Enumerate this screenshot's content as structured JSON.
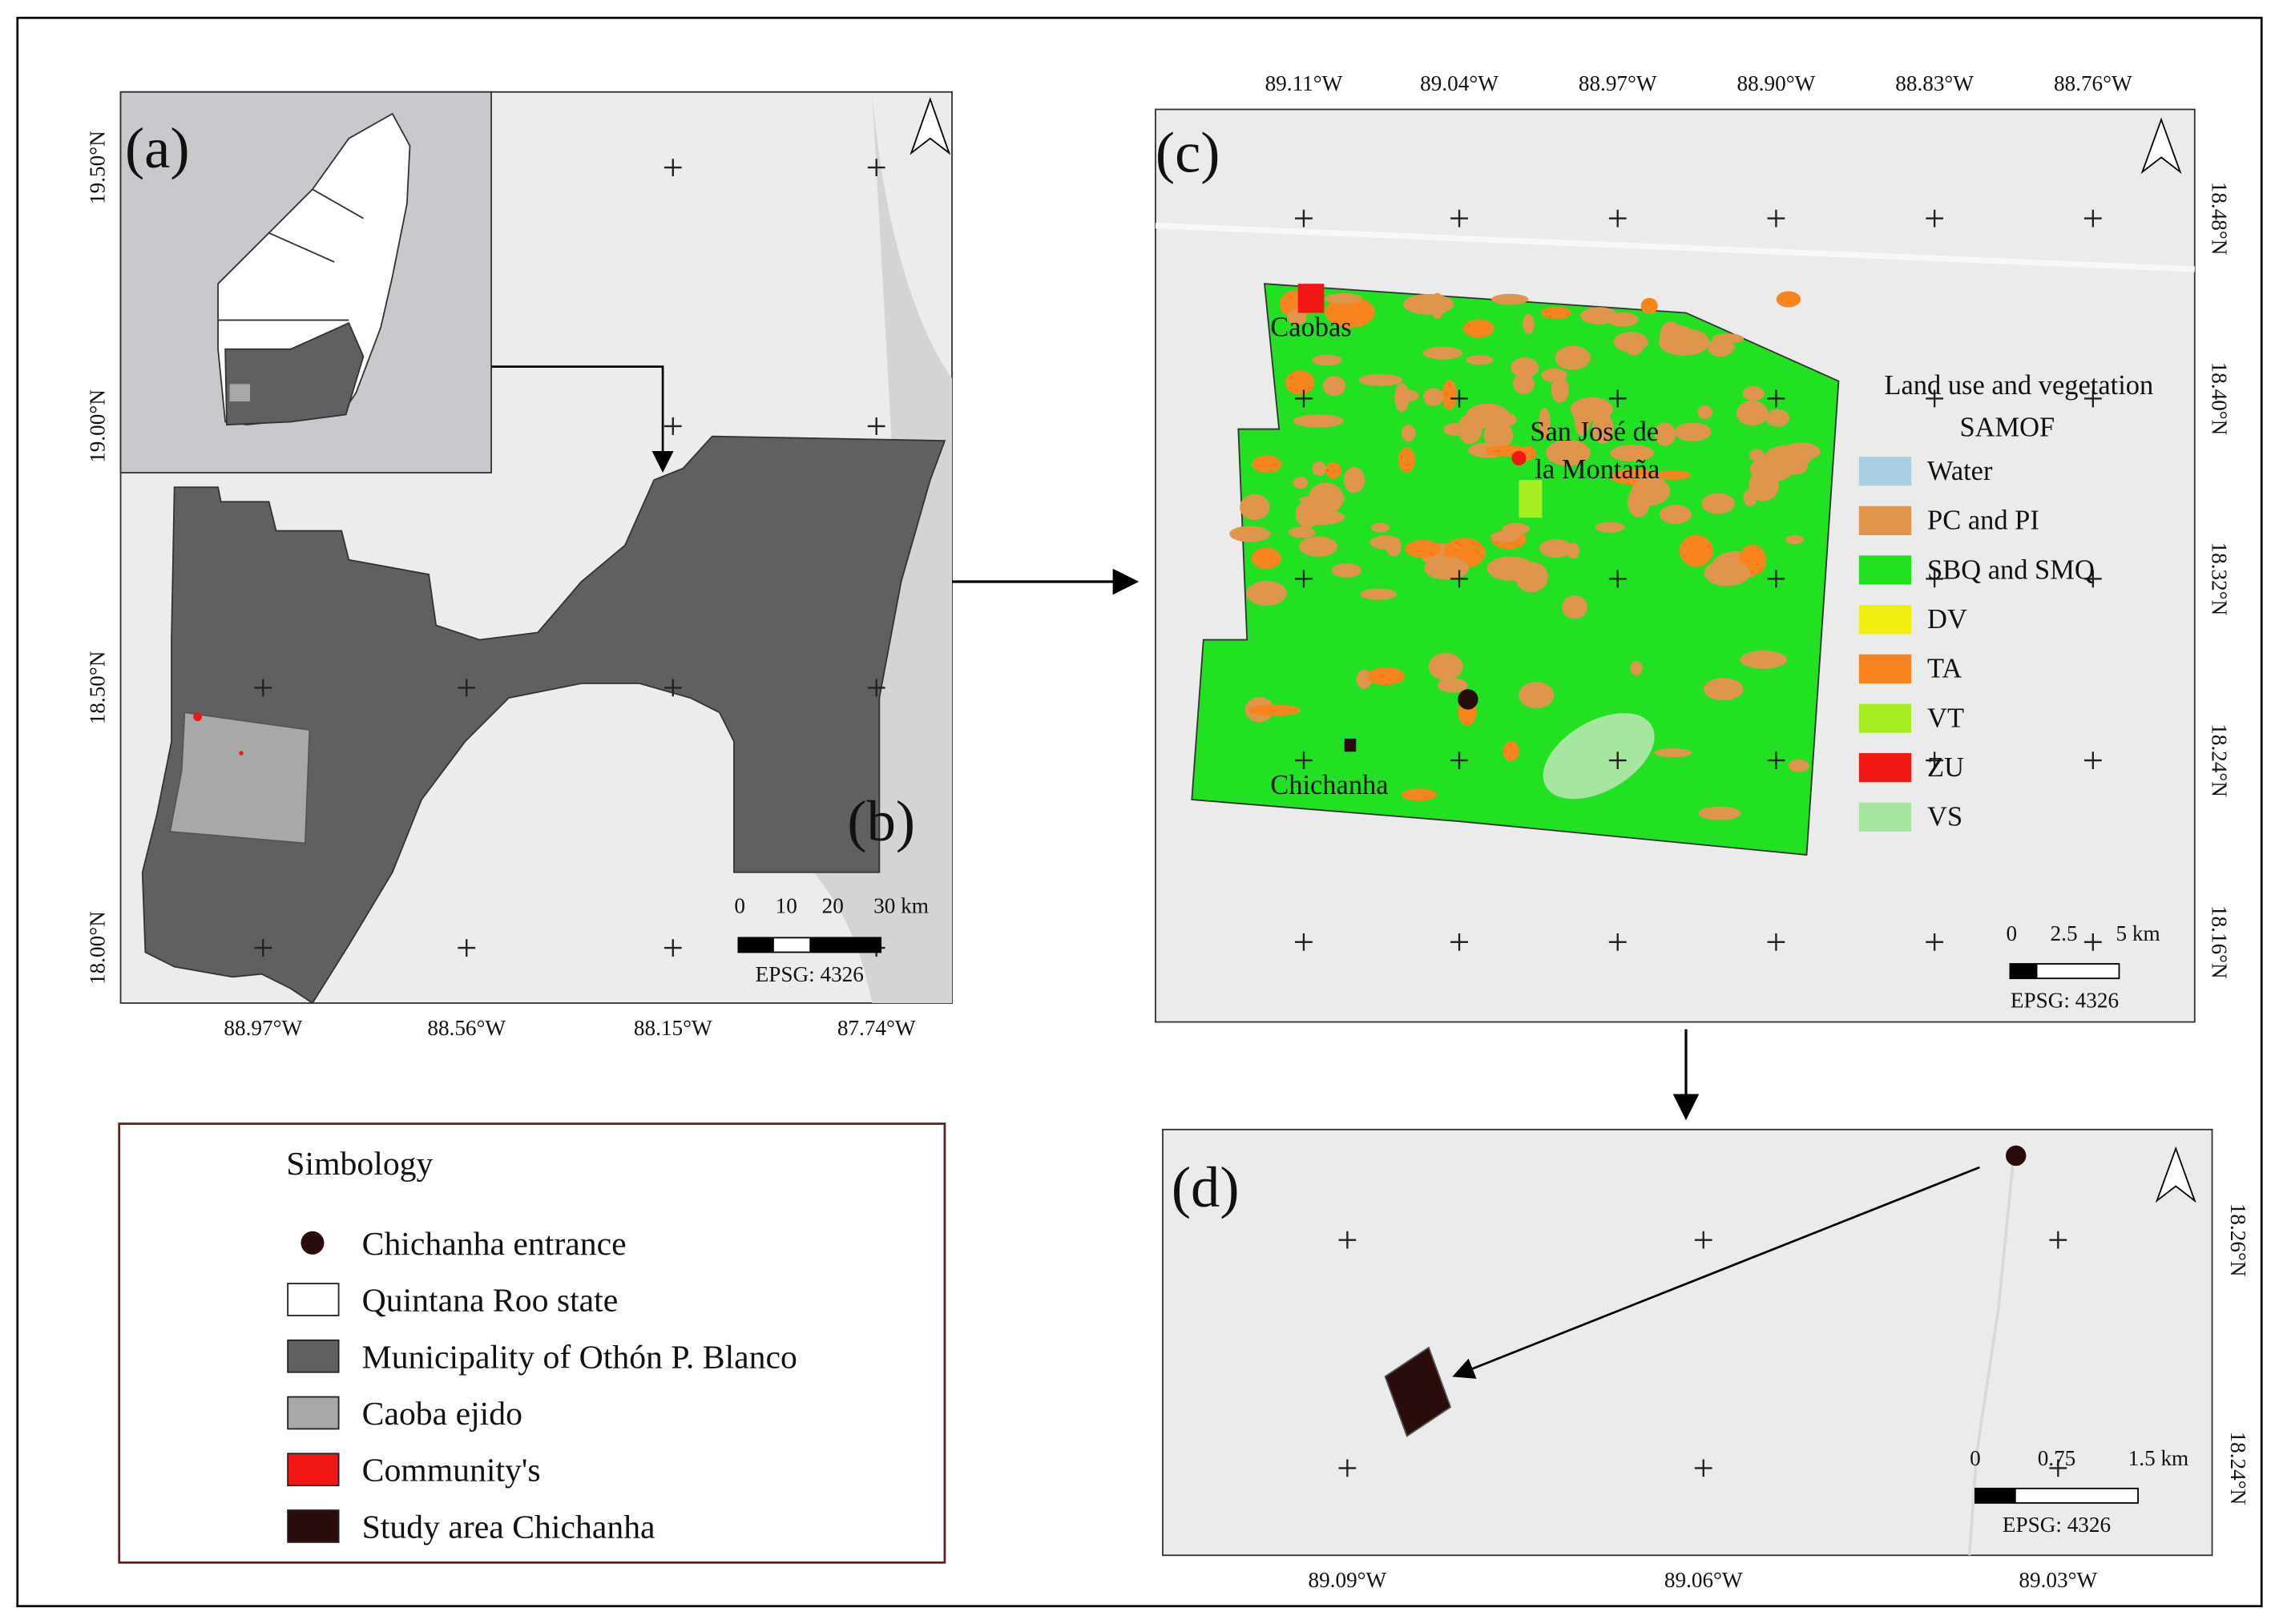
{
  "panels": {
    "a": {
      "label": "(a)"
    },
    "b": {
      "label": "(b)",
      "lat_labels": [
        "19.50°N",
        "19.00°N",
        "18.50°N",
        "18.00°N"
      ],
      "lon_labels": [
        "88.97°W",
        "88.56°W",
        "88.15°W",
        "87.74°W"
      ],
      "scale_labels": [
        "0",
        "10",
        "20",
        "30 km"
      ],
      "crs": "EPSG: 4326"
    },
    "c": {
      "label": "(c)",
      "lon_labels": [
        "89.11°W",
        "89.04°W",
        "88.97°W",
        "88.90°W",
        "88.83°W",
        "88.76°W"
      ],
      "lat_labels": [
        "18.48°N",
        "18.40°N",
        "18.32°N",
        "18.24°N",
        "18.16°N"
      ],
      "places": [
        "Caobas",
        "San José de",
        "la Montaña",
        "Chichanha"
      ],
      "legend": {
        "title": [
          "Land use and vegetation",
          "SAMOF"
        ],
        "items": [
          {
            "name": "Water",
            "color": "#a9cfe2"
          },
          {
            "name": "PC and PI",
            "color": "#e0954c"
          },
          {
            "name": "SBQ and SMQ",
            "color": "#22e022"
          },
          {
            "name": "DV",
            "color": "#f2ee12"
          },
          {
            "name": "TA",
            "color": "#f7841e"
          },
          {
            "name": "VT",
            "color": "#a4ee22"
          },
          {
            "name": "ZU",
            "color": "#f21616"
          },
          {
            "name": "VS",
            "color": "#a6e6a0"
          }
        ]
      },
      "scale_labels": [
        "0",
        "2.5",
        "5 km"
      ],
      "crs": "EPSG: 4326"
    },
    "d": {
      "label": "(d)",
      "lat_labels": [
        "18.26°N",
        "18.24°N"
      ],
      "lon_labels": [
        "89.09°W",
        "89.06°W",
        "89.03°W"
      ],
      "scale_labels": [
        "0",
        "0.75",
        "1.5 km"
      ],
      "crs": "EPSG: 4326"
    }
  },
  "simbology": {
    "title": "Simbology",
    "items": [
      {
        "name": "Chichanha entrance",
        "color": "#2a0c0c"
      },
      {
        "name": "Quintana Roo state",
        "color": "#ffffff"
      },
      {
        "name": "Municipality of Othón P. Blanco",
        "color": "#625f63"
      },
      {
        "name": "Caoba ejido",
        "color": "#a8a8a8"
      },
      {
        "name": "Community's",
        "color": "#f21616"
      },
      {
        "name": "Study area Chichanha",
        "color": "#2a0c0c"
      }
    ]
  }
}
